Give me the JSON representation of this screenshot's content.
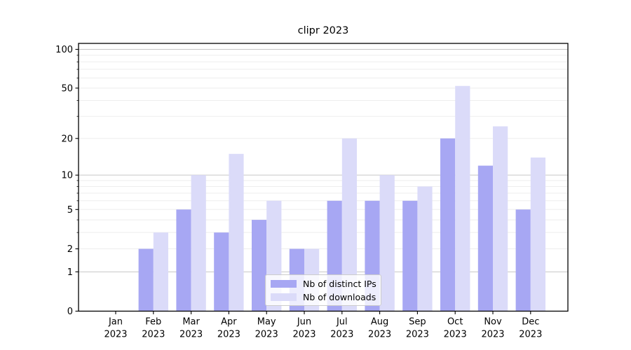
{
  "chart_data": {
    "type": "bar",
    "title": "clipr 2023",
    "categories": [
      "Jan 2023",
      "Feb 2023",
      "Mar 2023",
      "Apr 2023",
      "May 2023",
      "Jun 2023",
      "Jul 2023",
      "Aug 2023",
      "Sep 2023",
      "Oct 2023",
      "Nov 2023",
      "Dec 2023"
    ],
    "x_tick_labels": [
      {
        "month": "Jan",
        "year": "2023"
      },
      {
        "month": "Feb",
        "year": "2023"
      },
      {
        "month": "Mar",
        "year": "2023"
      },
      {
        "month": "Apr",
        "year": "2023"
      },
      {
        "month": "May",
        "year": "2023"
      },
      {
        "month": "Jun",
        "year": "2023"
      },
      {
        "month": "Jul",
        "year": "2023"
      },
      {
        "month": "Aug",
        "year": "2023"
      },
      {
        "month": "Sep",
        "year": "2023"
      },
      {
        "month": "Oct",
        "year": "2023"
      },
      {
        "month": "Nov",
        "year": "2023"
      },
      {
        "month": "Dec",
        "year": "2023"
      }
    ],
    "series": [
      {
        "name": "Nb of distinct IPs",
        "color": "#a7a7f3",
        "values": [
          0,
          2,
          5,
          3,
          4,
          2,
          6,
          6,
          6,
          20,
          12,
          5
        ]
      },
      {
        "name": "Nb of downloads",
        "color": "#dbdbf9",
        "values": [
          0,
          3,
          10,
          15,
          6,
          2,
          20,
          10,
          8,
          52,
          25,
          14
        ]
      }
    ],
    "y_axis": {
      "scale": "log1p",
      "tick_values": [
        0,
        1,
        2,
        5,
        10,
        20,
        50,
        100
      ],
      "tick_labels": [
        "0",
        "1",
        "2",
        "5",
        "10",
        "20",
        "50",
        "100"
      ],
      "major_gridlines": [
        1,
        10,
        100
      ],
      "minor_gridlines": [
        2,
        3,
        4,
        5,
        6,
        7,
        8,
        9,
        20,
        30,
        40,
        50,
        60,
        70,
        80,
        90
      ],
      "ylim": [
        0,
        111
      ]
    },
    "legend": {
      "position": "lower center",
      "entries": [
        "Nb of distinct IPs",
        "Nb of downloads"
      ]
    },
    "grid": true
  },
  "colors": {
    "background": "#ffffff",
    "axis": "#000000",
    "major_grid": "#c6c6c6",
    "minor_grid": "#ededed",
    "tick_text": "#000000"
  }
}
